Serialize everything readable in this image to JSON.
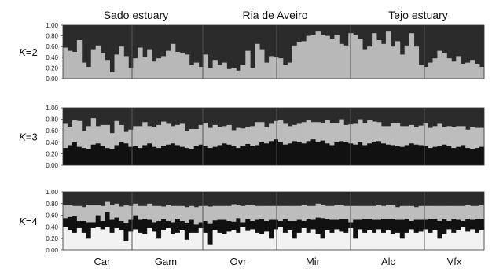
{
  "chart_data": {
    "type": "bar",
    "subtype": "stacked-admixture",
    "region_labels": [
      "Sado estuary",
      "Ria de Aveiro",
      "Tejo estuary"
    ],
    "population_labels": [
      "Car",
      "Gam",
      "Ovr",
      "Mir",
      "Alc",
      "Vfx"
    ],
    "y_ticks": [
      "1.00",
      "0.80",
      "0.60",
      "0.40",
      "0.20",
      "0.00"
    ],
    "ylim": [
      0,
      1
    ],
    "colors": {
      "k2": [
        "#b8b8b8",
        "#2b2b2b"
      ],
      "k3": [
        "#111111",
        "#bdbdbd",
        "#2b2b2b"
      ],
      "k4": [
        "#f2f2f2",
        "#111111",
        "#bdbdbd",
        "#2b2b2b"
      ]
    },
    "panels": [
      {
        "k_prefix": "K",
        "k_suffix": "=2",
        "components": 2,
        "series_bottom": [
          0.58,
          0.52,
          0.5,
          0.72,
          0.3,
          0.22,
          0.55,
          0.62,
          0.48,
          0.35,
          0.12,
          0.45,
          0.6,
          0.42,
          0.2,
          0.38,
          0.58,
          0.4,
          0.55,
          0.32,
          0.38,
          0.42,
          0.52,
          0.65,
          0.5,
          0.48,
          0.45,
          0.25,
          0.3,
          0.22,
          0.45,
          0.2,
          0.35,
          0.25,
          0.3,
          0.18,
          0.2,
          0.15,
          0.25,
          0.52,
          0.2,
          0.65,
          0.55,
          0.3,
          0.42,
          0.4,
          0.38,
          0.25,
          0.3,
          0.62,
          0.68,
          0.7,
          0.8,
          0.82,
          0.88,
          0.82,
          0.8,
          0.75,
          0.82,
          0.65,
          0.62,
          0.85,
          0.82,
          0.75,
          0.55,
          0.6,
          0.85,
          0.72,
          0.65,
          0.88,
          0.6,
          0.7,
          0.45,
          0.62,
          0.85,
          0.6,
          0.25,
          0.22,
          0.3,
          0.38,
          0.52,
          0.48,
          0.38,
          0.32,
          0.42,
          0.28,
          0.3,
          0.35,
          0.28,
          0.22
        ]
      },
      {
        "k_prefix": "K",
        "k_suffix": "=3",
        "components": 3,
        "series_bottom": [
          0.3,
          0.35,
          0.4,
          0.32,
          0.3,
          0.28,
          0.36,
          0.38,
          0.34,
          0.3,
          0.28,
          0.35,
          0.4,
          0.38,
          0.32,
          0.33,
          0.3,
          0.35,
          0.38,
          0.32,
          0.3,
          0.34,
          0.36,
          0.38,
          0.35,
          0.32,
          0.3,
          0.28,
          0.33,
          0.36,
          0.34,
          0.3,
          0.32,
          0.35,
          0.38,
          0.36,
          0.33,
          0.3,
          0.34,
          0.37,
          0.33,
          0.35,
          0.4,
          0.38,
          0.42,
          0.45,
          0.4,
          0.36,
          0.38,
          0.42,
          0.4,
          0.38,
          0.42,
          0.45,
          0.4,
          0.43,
          0.38,
          0.35,
          0.4,
          0.42,
          0.4,
          0.38,
          0.36,
          0.4,
          0.35,
          0.38,
          0.4,
          0.42,
          0.38,
          0.36,
          0.35,
          0.33,
          0.32,
          0.35,
          0.38,
          0.36,
          0.35,
          0.33,
          0.3,
          0.32,
          0.34,
          0.36,
          0.33,
          0.3,
          0.32,
          0.35,
          0.3,
          0.28,
          0.3,
          0.32
        ],
        "series_middle": [
          0.42,
          0.32,
          0.38,
          0.45,
          0.3,
          0.4,
          0.46,
          0.3,
          0.36,
          0.4,
          0.28,
          0.42,
          0.3,
          0.2,
          0.3,
          0.35,
          0.38,
          0.4,
          0.3,
          0.35,
          0.4,
          0.42,
          0.36,
          0.3,
          0.35,
          0.4,
          0.3,
          0.35,
          0.3,
          0.34,
          0.4,
          0.35,
          0.38,
          0.32,
          0.3,
          0.34,
          0.28,
          0.35,
          0.3,
          0.3,
          0.35,
          0.4,
          0.35,
          0.28,
          0.3,
          0.32,
          0.38,
          0.36,
          0.3,
          0.28,
          0.32,
          0.37,
          0.36,
          0.3,
          0.35,
          0.3,
          0.4,
          0.38,
          0.33,
          0.38,
          0.3,
          0.33,
          0.36,
          0.4,
          0.38,
          0.4,
          0.36,
          0.33,
          0.3,
          0.32,
          0.38,
          0.4,
          0.36,
          0.33,
          0.32,
          0.3,
          0.34,
          0.4,
          0.35,
          0.36,
          0.38,
          0.3,
          0.35,
          0.37,
          0.36,
          0.33,
          0.32,
          0.38,
          0.35,
          0.33
        ]
      },
      {
        "k_prefix": "K",
        "k_suffix": "=4",
        "components": 4,
        "series_bottom": [
          0.4,
          0.35,
          0.3,
          0.38,
          0.3,
          0.2,
          0.38,
          0.4,
          0.36,
          0.4,
          0.3,
          0.38,
          0.35,
          0.15,
          0.32,
          0.36,
          0.3,
          0.28,
          0.38,
          0.32,
          0.2,
          0.35,
          0.38,
          0.28,
          0.3,
          0.34,
          0.18,
          0.3,
          0.3,
          0.38,
          0.3,
          0.1,
          0.35,
          0.3,
          0.28,
          0.32,
          0.35,
          0.3,
          0.4,
          0.33,
          0.36,
          0.3,
          0.28,
          0.32,
          0.2,
          0.36,
          0.4,
          0.3,
          0.34,
          0.2,
          0.3,
          0.38,
          0.3,
          0.36,
          0.28,
          0.2,
          0.34,
          0.3,
          0.36,
          0.32,
          0.3,
          0.38,
          0.2,
          0.36,
          0.3,
          0.34,
          0.3,
          0.36,
          0.3,
          0.34,
          0.28,
          0.3,
          0.2,
          0.3,
          0.36,
          0.3,
          0.32,
          0.36,
          0.3,
          0.34,
          0.2,
          0.28,
          0.36,
          0.3,
          0.34,
          0.4,
          0.32,
          0.36,
          0.3,
          0.34
        ],
        "series_black": [
          0.15,
          0.22,
          0.28,
          0.12,
          0.2,
          0.28,
          0.1,
          0.2,
          0.14,
          0.25,
          0.22,
          0.18,
          0.15,
          0.32,
          0.2,
          0.24,
          0.22,
          0.26,
          0.14,
          0.16,
          0.3,
          0.18,
          0.12,
          0.2,
          0.24,
          0.16,
          0.28,
          0.22,
          0.14,
          0.1,
          0.2,
          0.35,
          0.16,
          0.22,
          0.24,
          0.18,
          0.14,
          0.25,
          0.08,
          0.2,
          0.14,
          0.22,
          0.26,
          0.18,
          0.32,
          0.16,
          0.1,
          0.24,
          0.16,
          0.3,
          0.22,
          0.12,
          0.24,
          0.16,
          0.28,
          0.35,
          0.2,
          0.22,
          0.16,
          0.22,
          0.24,
          0.1,
          0.32,
          0.16,
          0.24,
          0.2,
          0.22,
          0.16,
          0.24,
          0.2,
          0.26,
          0.22,
          0.32,
          0.24,
          0.14,
          0.22,
          0.2,
          0.16,
          0.24,
          0.2,
          0.3,
          0.26,
          0.14,
          0.24,
          0.18,
          0.1,
          0.22,
          0.16,
          0.24,
          0.2
        ],
        "series_light": [
          0.22,
          0.2,
          0.18,
          0.26,
          0.24,
          0.3,
          0.3,
          0.18,
          0.26,
          0.18,
          0.26,
          0.24,
          0.25,
          0.3,
          0.24,
          0.2,
          0.24,
          0.22,
          0.28,
          0.28,
          0.26,
          0.22,
          0.28,
          0.28,
          0.22,
          0.26,
          0.28,
          0.24,
          0.3,
          0.28,
          0.26,
          0.3,
          0.25,
          0.24,
          0.24,
          0.26,
          0.3,
          0.22,
          0.28,
          0.24,
          0.28,
          0.24,
          0.22,
          0.26,
          0.24,
          0.24,
          0.26,
          0.22,
          0.26,
          0.26,
          0.24,
          0.28,
          0.22,
          0.24,
          0.24,
          0.22,
          0.22,
          0.24,
          0.26,
          0.24,
          0.22,
          0.28,
          0.24,
          0.24,
          0.22,
          0.22,
          0.24,
          0.26,
          0.22,
          0.24,
          0.24,
          0.22,
          0.24,
          0.22,
          0.26,
          0.22,
          0.24,
          0.24,
          0.22,
          0.22,
          0.26,
          0.22,
          0.26,
          0.22,
          0.24,
          0.26,
          0.24,
          0.24,
          0.22,
          0.24
        ]
      }
    ]
  }
}
